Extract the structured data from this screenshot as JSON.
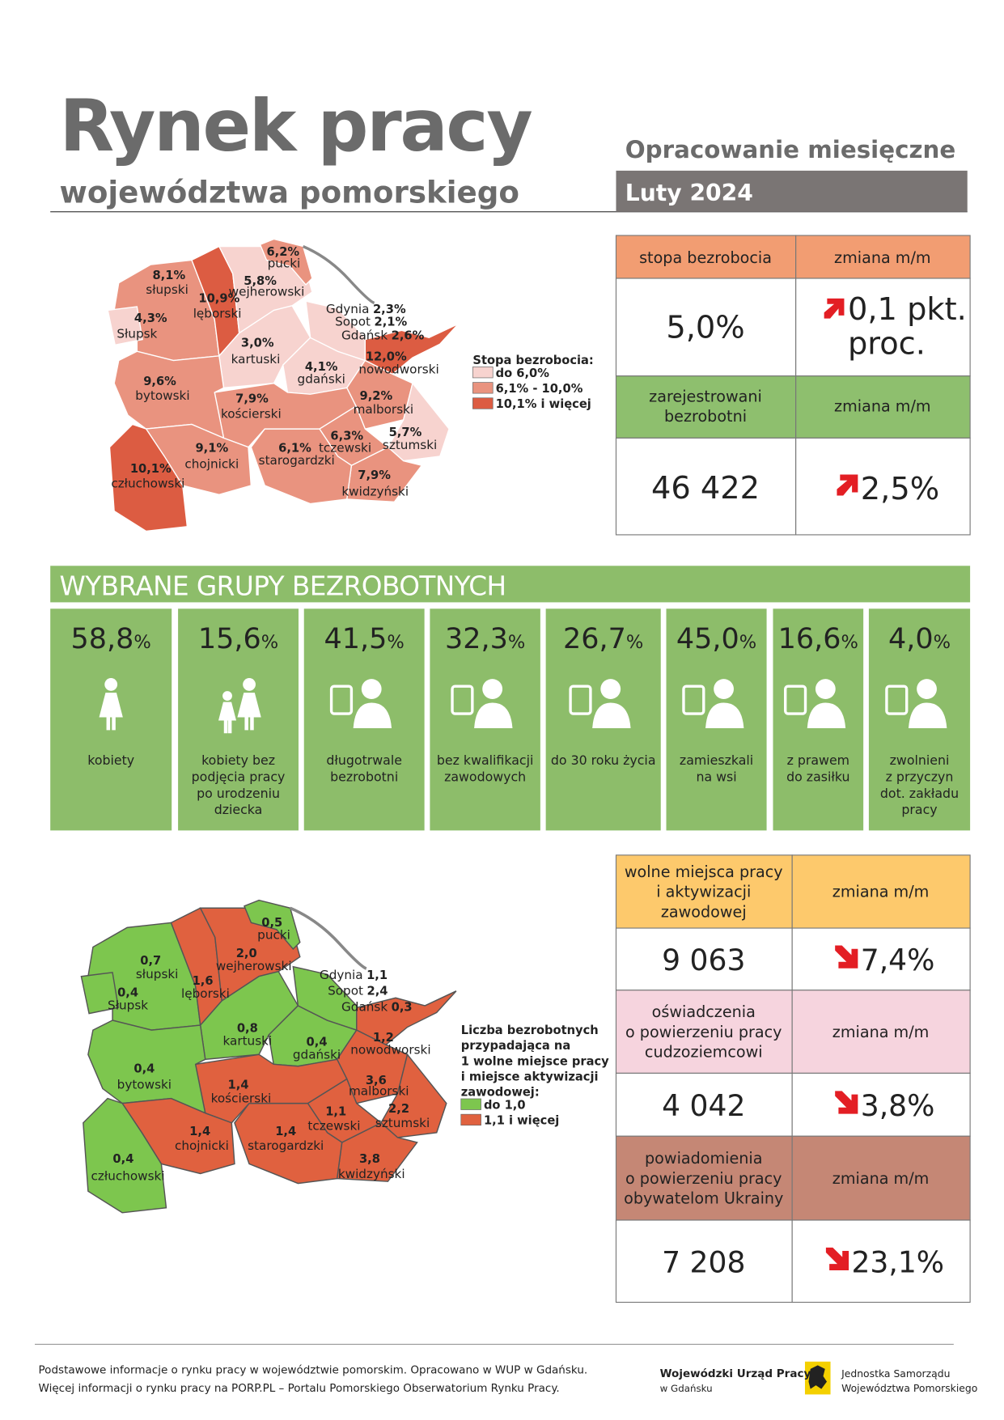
{
  "header": {
    "title": "Rynek pracy",
    "subtitle": "województwa pomorskiego",
    "series": "Opracowanie miesięczne",
    "period": "Luty 2024"
  },
  "map_unemployment": {
    "legend_title": [
      "Stopa bezrobocia:"
    ],
    "legend": [
      {
        "label": "do 6,0%",
        "color": "#f7d3cf"
      },
      {
        "label": "6,1% - 10,0%",
        "color": "#e9937f"
      },
      {
        "label": "10,1% i więcej",
        "color": "#dc5c42"
      }
    ],
    "regions": [
      {
        "name": "słupski",
        "value": "8,1%",
        "level": 1
      },
      {
        "name": "Słupsk",
        "value": "4,3%",
        "level": 0
      },
      {
        "name": "lęborski",
        "value": "10,9%",
        "level": 2
      },
      {
        "name": "wejherowski",
        "value": "5,8%",
        "level": 0
      },
      {
        "name": "pucki",
        "value": "6,2%",
        "level": 1
      },
      {
        "name": "kartuski",
        "value": "3,0%",
        "level": 0
      },
      {
        "name": "gdański",
        "value": "4,1%",
        "level": 0
      },
      {
        "name": "nowodworski",
        "value": "12,0%",
        "level": 2
      },
      {
        "name": "malborski",
        "value": "9,2%",
        "level": 1
      },
      {
        "name": "sztumski",
        "value": "5,7%",
        "level": 0
      },
      {
        "name": "kwidzyński",
        "value": "7,9%",
        "level": 1
      },
      {
        "name": "tczewski",
        "value": "6,3%",
        "level": 1
      },
      {
        "name": "starogardzki",
        "value": "6,1%",
        "level": 1
      },
      {
        "name": "kościerski",
        "value": "7,9%",
        "level": 1
      },
      {
        "name": "bytowski",
        "value": "9,6%",
        "level": 1
      },
      {
        "name": "chojnicki",
        "value": "9,1%",
        "level": 1
      },
      {
        "name": "człuchowski",
        "value": "10,1%",
        "level": 2
      }
    ],
    "cities": [
      {
        "name": "Gdynia",
        "value": "2,3%",
        "level": 0
      },
      {
        "name": "Sopot",
        "value": "2,1%",
        "level": 0
      },
      {
        "name": "Gdańsk",
        "value": "2,6%",
        "level": 0
      }
    ]
  },
  "unemployment_table": {
    "rate_header": [
      "stopa bezrobocia"
    ],
    "rate_change_header": [
      "zmiana m/m"
    ],
    "rate": "5,0%",
    "rate_change": [
      "0,1 pkt.",
      "proc."
    ],
    "registered_header": [
      "zarejestrowani",
      "bezrobotni"
    ],
    "registered_change_header": [
      "zmiana m/m"
    ],
    "registered": "46 422",
    "registered_change": [
      "2,5%"
    ]
  },
  "groups": {
    "title": "WYBRANE GRUPY BEZROBOTNYCH",
    "items": [
      {
        "value": "58,8",
        "unit": "%",
        "label": [
          "kobiety"
        ]
      },
      {
        "value": "15,6",
        "unit": "%",
        "label": [
          "kobiety bez",
          "podjęcia pracy",
          "po urodzeniu",
          "dziecka"
        ]
      },
      {
        "value": "41,5",
        "unit": "%",
        "label": [
          "długotrwale",
          "bezrobotni"
        ]
      },
      {
        "value": "32,3",
        "unit": "%",
        "label": [
          "bez kwalifikacji",
          "zawodowych"
        ]
      },
      {
        "value": "26,7",
        "unit": "%",
        "label": [
          "do 30 roku życia"
        ]
      },
      {
        "value": "45,0",
        "unit": "%",
        "label": [
          "zamieszkali",
          "na wsi"
        ]
      },
      {
        "value": "16,6",
        "unit": "%",
        "label": [
          "z prawem",
          "do zasiłku"
        ]
      },
      {
        "value": "4,0",
        "unit": "%",
        "label": [
          "zwolnieni",
          "z przyczyn",
          "dot. zakładu",
          "pracy"
        ]
      }
    ]
  },
  "map_offers": {
    "legend_title": [
      "Liczba bezrobotnych",
      "przypadająca na",
      "1 wolne miejsce pracy",
      "i miejsce aktywizacji",
      "zawodowej:"
    ],
    "legend": [
      {
        "label": "do 1,0",
        "color": "#7dc64e"
      },
      {
        "label": "1,1 i więcej",
        "color": "#e0613f"
      }
    ],
    "regions": [
      {
        "name": "słupski",
        "value": "0,7",
        "level": 0
      },
      {
        "name": "Słupsk",
        "value": "0,4",
        "level": 0
      },
      {
        "name": "lęborski",
        "value": "1,6",
        "level": 1
      },
      {
        "name": "wejherowski",
        "value": "2,0",
        "level": 1
      },
      {
        "name": "pucki",
        "value": "0,5",
        "level": 0
      },
      {
        "name": "kartuski",
        "value": "0,8",
        "level": 0
      },
      {
        "name": "gdański",
        "value": "0,4",
        "level": 0
      },
      {
        "name": "nowodworski",
        "value": "1,2",
        "level": 1
      },
      {
        "name": "malborski",
        "value": "3,6",
        "level": 1
      },
      {
        "name": "sztumski",
        "value": "2,2",
        "level": 1
      },
      {
        "name": "kwidzyński",
        "value": "3,8",
        "level": 1
      },
      {
        "name": "tczewski",
        "value": "1,1",
        "level": 1
      },
      {
        "name": "starogardzki",
        "value": "1,4",
        "level": 1
      },
      {
        "name": "kościerski",
        "value": "1,4",
        "level": 1
      },
      {
        "name": "bytowski",
        "value": "0,4",
        "level": 0
      },
      {
        "name": "chojnicki",
        "value": "1,4",
        "level": 1
      },
      {
        "name": "człuchowski",
        "value": "0,4",
        "level": 0
      }
    ],
    "cities": [
      {
        "name": "Gdynia",
        "value": "1,1",
        "level": 1
      },
      {
        "name": "Sopot",
        "value": "2,4",
        "level": 1
      },
      {
        "name": "Gdańsk",
        "value": "0,3",
        "level": 0
      }
    ]
  },
  "offers_table": {
    "rows": [
      {
        "header": [
          "wolne miejsca pracy",
          "i aktywizacji",
          "zawodowej"
        ],
        "change_header": [
          "zmiana m/m"
        ],
        "value": "9 063",
        "change": "7,4%",
        "color": "#fdc96c"
      },
      {
        "header": [
          "oświadczenia",
          "o powierzeniu pracy",
          "cudzoziemcowi"
        ],
        "change_header": [
          "zmiana m/m"
        ],
        "value": "4 042",
        "change": "3,8%",
        "color": "#f6d4de"
      },
      {
        "header": [
          "powiadomienia",
          "o powierzeniu pracy",
          "obywatelom Ukrainy"
        ],
        "change_header": [
          "zmiana m/m"
        ],
        "value": "7 208",
        "change": "23,1%",
        "color": "#c58775"
      }
    ]
  },
  "footer": {
    "text": [
      "Podstawowe informacje o rynku pracy w województwie pomorskim. Opracowano w WUP w Gdańsku.",
      "Więcej informacji o rynku pracy na PORP.PL – Portalu Pomorskiego Obserwatorium Rynku Pracy."
    ],
    "logo_wup": [
      "Wojewódzki Urząd Pracy",
      "w Gdańsku"
    ],
    "logo_region": [
      "Jednostka Samorządu",
      "Województwa Pomorskiego"
    ]
  }
}
